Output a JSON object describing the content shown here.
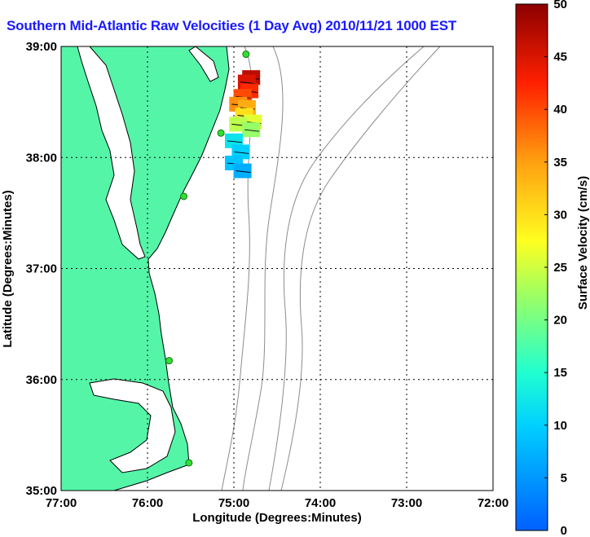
{
  "title": "Southern Mid-Atlantic Raw Velocities (1 Day Avg) 2010/11/21 1000 EST",
  "xaxis": {
    "label": "Longitude (Degrees:Minutes)",
    "ticks": [
      "77:00",
      "76:00",
      "75:00",
      "74:00",
      "73:00",
      "72:00"
    ]
  },
  "yaxis": {
    "label": "Latitude (Degrees:Minutes)",
    "ticks": [
      "39:00",
      "38:00",
      "37:00",
      "36:00",
      "35:00"
    ]
  },
  "colorbar": {
    "label": "Surface Velocity (cm/s)",
    "min": 0,
    "max": 50,
    "ticks": [
      "50",
      "45",
      "40",
      "35",
      "30",
      "25",
      "20",
      "15",
      "10",
      "5",
      "0"
    ]
  },
  "colors": {
    "land": "#55f5a8",
    "ocean": "#ffffff",
    "coast": "#000000",
    "bathymetry": "#8c8c8c",
    "station": "#33dd33",
    "title": "#1a1aff"
  },
  "stations": [
    {
      "lon": -74.86,
      "lat": 38.93
    },
    {
      "lon": -75.15,
      "lat": 38.22
    },
    {
      "lon": -75.58,
      "lat": 37.65
    },
    {
      "lon": -75.75,
      "lat": 36.17
    },
    {
      "lon": -75.52,
      "lat": 35.25
    }
  ],
  "velocity_field": [
    {
      "lon": -74.8,
      "lat": 38.72,
      "speed": 47
    },
    {
      "lon": -74.85,
      "lat": 38.68,
      "speed": 45
    },
    {
      "lon": -74.82,
      "lat": 38.6,
      "speed": 42
    },
    {
      "lon": -74.9,
      "lat": 38.55,
      "speed": 40
    },
    {
      "lon": -74.95,
      "lat": 38.48,
      "speed": 36
    },
    {
      "lon": -74.85,
      "lat": 38.45,
      "speed": 34
    },
    {
      "lon": -74.88,
      "lat": 38.38,
      "speed": 30
    },
    {
      "lon": -74.78,
      "lat": 38.32,
      "speed": 26
    },
    {
      "lon": -74.95,
      "lat": 38.3,
      "speed": 24
    },
    {
      "lon": -74.8,
      "lat": 38.25,
      "speed": 22
    },
    {
      "lon": -75.0,
      "lat": 38.15,
      "speed": 12
    },
    {
      "lon": -74.92,
      "lat": 38.05,
      "speed": 10
    },
    {
      "lon": -75.0,
      "lat": 37.95,
      "speed": 9
    },
    {
      "lon": -74.9,
      "lat": 37.88,
      "speed": 7
    }
  ]
}
